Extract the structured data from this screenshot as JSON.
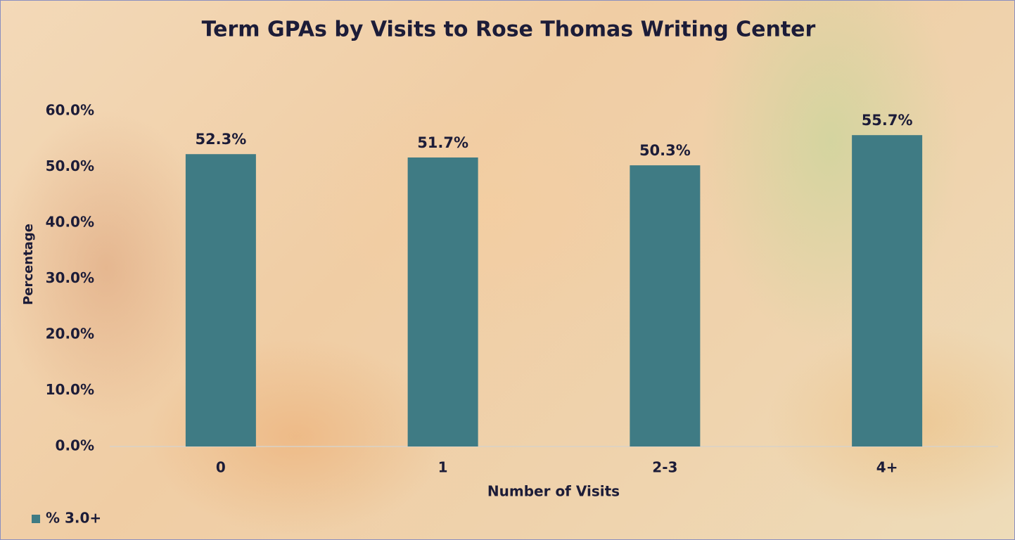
{
  "chart_data": {
    "type": "bar",
    "title": "Term GPAs by Visits to Rose Thomas Writing Center",
    "x_label": "Number of Visits",
    "y_label": "Percentage",
    "categories": [
      "0",
      "1",
      "2-3",
      "4+"
    ],
    "series": [
      {
        "name": "% 3.0+",
        "color": "#3f7b84",
        "values": [
          52.3,
          51.7,
          50.3,
          55.7
        ],
        "value_labels": [
          "52.3%",
          "51.7%",
          "50.3%",
          "55.7%"
        ]
      }
    ],
    "ylim": [
      0,
      60
    ],
    "yticks": [
      {
        "value": 0,
        "label": "0.0%"
      },
      {
        "value": 10,
        "label": "10.0%"
      },
      {
        "value": 20,
        "label": "20.0%"
      },
      {
        "value": 30,
        "label": "30.0%"
      },
      {
        "value": 40,
        "label": "40.0%"
      },
      {
        "value": 50,
        "label": "50.0%"
      },
      {
        "value": 60,
        "label": "60.0%"
      }
    ],
    "grid": false,
    "legend": "bottom-left"
  }
}
